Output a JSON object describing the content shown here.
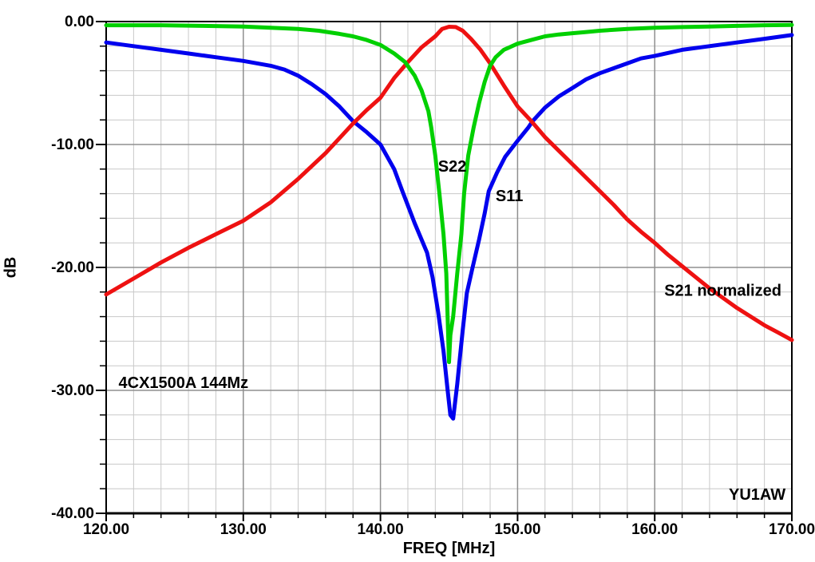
{
  "chart_data": {
    "type": "line",
    "title": "",
    "xlabel": "FREQ [MHz]",
    "ylabel": "dB",
    "xlim": [
      120,
      170
    ],
    "ylim": [
      -40,
      0
    ],
    "x_major_ticks": [
      120,
      130,
      140,
      150,
      160,
      170
    ],
    "x_tick_labels": [
      "120.00",
      "130.00",
      "140.00",
      "150.00",
      "160.00",
      "170.00"
    ],
    "x_minor_step": 2,
    "y_major_ticks": [
      0,
      -10,
      -20,
      -30,
      -40
    ],
    "y_tick_labels": [
      "0.00",
      "-10.00",
      "-20.00",
      "-30.00",
      "-40.00"
    ],
    "y_minor_step": 2,
    "grid": {
      "minor_color": "#c8c8c8",
      "major_color": "#8f8f8f",
      "axis_color": "#000000",
      "background": "#ffffff"
    },
    "series": [
      {
        "name": "S11",
        "color": "#0000ee",
        "points": [
          [
            120,
            -1.7
          ],
          [
            122,
            -2.0
          ],
          [
            124,
            -2.3
          ],
          [
            126,
            -2.6
          ],
          [
            128,
            -2.9
          ],
          [
            130,
            -3.2
          ],
          [
            132,
            -3.6
          ],
          [
            133,
            -3.9
          ],
          [
            134,
            -4.4
          ],
          [
            135,
            -5.1
          ],
          [
            136,
            -5.9
          ],
          [
            137,
            -6.9
          ],
          [
            138,
            -8.1
          ],
          [
            139,
            -9.0
          ],
          [
            140,
            -10.0
          ],
          [
            141,
            -12.0
          ],
          [
            141.6,
            -13.8
          ],
          [
            142.5,
            -16.4
          ],
          [
            143.4,
            -18.8
          ],
          [
            143.8,
            -20.8
          ],
          [
            144.2,
            -23.6
          ],
          [
            144.6,
            -26.8
          ],
          [
            144.9,
            -30.0
          ],
          [
            145.1,
            -32.0
          ],
          [
            145.3,
            -32.3
          ],
          [
            145.6,
            -29.5
          ],
          [
            145.8,
            -27.3
          ],
          [
            146,
            -25.1
          ],
          [
            146.3,
            -22.1
          ],
          [
            146.7,
            -20.1
          ],
          [
            147.2,
            -17.7
          ],
          [
            147.6,
            -15.6
          ],
          [
            147.9,
            -13.8
          ],
          [
            148.5,
            -12.3
          ],
          [
            149.1,
            -11.0
          ],
          [
            150,
            -9.7
          ],
          [
            150.8,
            -8.6
          ],
          [
            151.1,
            -8.1
          ],
          [
            152,
            -7.0
          ],
          [
            153,
            -6.1
          ],
          [
            154,
            -5.4
          ],
          [
            155,
            -4.7
          ],
          [
            156,
            -4.2
          ],
          [
            157,
            -3.8
          ],
          [
            158,
            -3.4
          ],
          [
            159,
            -3.0
          ],
          [
            160,
            -2.8
          ],
          [
            162,
            -2.3
          ],
          [
            164,
            -2.0
          ],
          [
            166,
            -1.7
          ],
          [
            168,
            -1.4
          ],
          [
            170,
            -1.1
          ]
        ]
      },
      {
        "name": "S21 normalized",
        "color": "#ee1111",
        "points": [
          [
            120,
            -22.2
          ],
          [
            122,
            -20.9
          ],
          [
            124,
            -19.6
          ],
          [
            126,
            -18.4
          ],
          [
            128,
            -17.3
          ],
          [
            130,
            -16.2
          ],
          [
            132,
            -14.7
          ],
          [
            134,
            -12.8
          ],
          [
            136,
            -10.7
          ],
          [
            137,
            -9.5
          ],
          [
            138,
            -8.3
          ],
          [
            139,
            -7.2
          ],
          [
            140,
            -6.2
          ],
          [
            141,
            -4.6
          ],
          [
            142,
            -3.3
          ],
          [
            143,
            -2.1
          ],
          [
            144,
            -1.2
          ],
          [
            144.5,
            -0.6
          ],
          [
            145,
            -0.42
          ],
          [
            145.5,
            -0.45
          ],
          [
            146,
            -0.75
          ],
          [
            146.6,
            -1.4
          ],
          [
            147.3,
            -2.3
          ],
          [
            148,
            -3.4
          ],
          [
            149,
            -5.2
          ],
          [
            150,
            -6.9
          ],
          [
            151,
            -8.1
          ],
          [
            152,
            -9.4
          ],
          [
            153,
            -10.5
          ],
          [
            154,
            -11.6
          ],
          [
            155,
            -12.7
          ],
          [
            156,
            -13.8
          ],
          [
            157,
            -14.9
          ],
          [
            158,
            -16.1
          ],
          [
            159,
            -17.1
          ],
          [
            160,
            -18.0
          ],
          [
            161,
            -19.0
          ],
          [
            162,
            -19.9
          ],
          [
            163,
            -20.8
          ],
          [
            164,
            -21.7
          ],
          [
            165,
            -22.5
          ],
          [
            166,
            -23.3
          ],
          [
            167,
            -24.0
          ],
          [
            168,
            -24.7
          ],
          [
            169,
            -25.3
          ],
          [
            170,
            -25.9
          ]
        ]
      },
      {
        "name": "S22",
        "color": "#00d000",
        "points": [
          [
            120,
            -0.3
          ],
          [
            124,
            -0.3
          ],
          [
            127,
            -0.35
          ],
          [
            130,
            -0.4
          ],
          [
            132,
            -0.5
          ],
          [
            134,
            -0.6
          ],
          [
            135.5,
            -0.75
          ],
          [
            137,
            -1.0
          ],
          [
            138,
            -1.2
          ],
          [
            139,
            -1.5
          ],
          [
            140,
            -1.9
          ],
          [
            141,
            -2.6
          ],
          [
            141.8,
            -3.3
          ],
          [
            142.5,
            -4.4
          ],
          [
            143,
            -5.6
          ],
          [
            143.5,
            -7.3
          ],
          [
            143.7,
            -8.6
          ],
          [
            144,
            -10.9
          ],
          [
            144.3,
            -14.0
          ],
          [
            144.6,
            -17.3
          ],
          [
            144.8,
            -20.5
          ],
          [
            145,
            -27.7
          ],
          [
            145.1,
            -25.5
          ],
          [
            145.3,
            -24.0
          ],
          [
            145.6,
            -20.5
          ],
          [
            145.9,
            -17.3
          ],
          [
            146.1,
            -14.0
          ],
          [
            146.4,
            -10.9
          ],
          [
            146.8,
            -8.6
          ],
          [
            147.2,
            -6.6
          ],
          [
            147.6,
            -4.9
          ],
          [
            148,
            -3.6
          ],
          [
            148.4,
            -2.9
          ],
          [
            149,
            -2.3
          ],
          [
            150,
            -1.8
          ],
          [
            151,
            -1.5
          ],
          [
            152,
            -1.2
          ],
          [
            153,
            -1.05
          ],
          [
            154,
            -0.95
          ],
          [
            155,
            -0.85
          ],
          [
            156,
            -0.75
          ],
          [
            158,
            -0.6
          ],
          [
            160,
            -0.5
          ],
          [
            162,
            -0.45
          ],
          [
            164,
            -0.4
          ],
          [
            166,
            -0.35
          ],
          [
            168,
            -0.3
          ],
          [
            170,
            -0.28
          ]
        ]
      }
    ],
    "annotations": [
      {
        "text": "S22",
        "f": 144.2,
        "db": -12.2
      },
      {
        "text": "S11",
        "f": 148.4,
        "db": -14.6
      },
      {
        "text": "S21 normalized",
        "f": 160.7,
        "db": -22.3
      },
      {
        "text": "4CX1500A 144Mz",
        "f": 120.9,
        "db": -29.8
      },
      {
        "text": "YU1AW",
        "f": 165.4,
        "db": -38.9
      }
    ],
    "legend": "none"
  }
}
